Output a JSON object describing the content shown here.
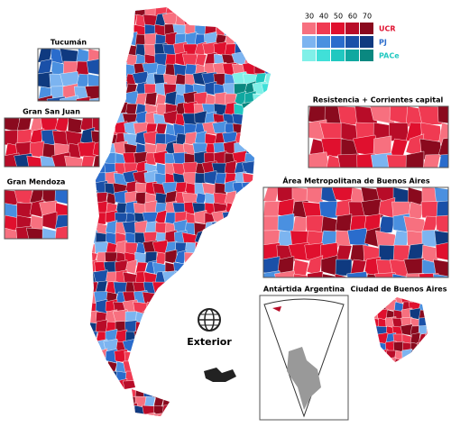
{
  "legend": {
    "ticks": [
      30,
      40,
      50,
      60,
      70
    ],
    "parties": [
      {
        "name": "UCR",
        "color": "#e0102e",
        "colors": [
          "#f7707f",
          "#f03a52",
          "#e0102e",
          "#b80c28",
          "#8a0a1e"
        ]
      },
      {
        "name": "PJ",
        "color": "#2a6ccc",
        "colors": [
          "#7cb4f0",
          "#4a90e0",
          "#2a6ccc",
          "#1a50a8",
          "#0f3a80"
        ]
      },
      {
        "name": "PACe",
        "color": "#20c8c0",
        "colors": [
          "#80f0e8",
          "#40e0d8",
          "#20c8c0",
          "#10a8a0",
          "#0a8880"
        ]
      }
    ]
  },
  "insets": [
    "Tucumán",
    "Gran San Juan",
    "Gran Mendoza",
    "Resistencia + Corrientes capital",
    "Área Metropolitana de Buenos Aires",
    "Antártida Argentina",
    "Ciudad de Buenos Aires"
  ],
  "exterior": "Exterior"
}
